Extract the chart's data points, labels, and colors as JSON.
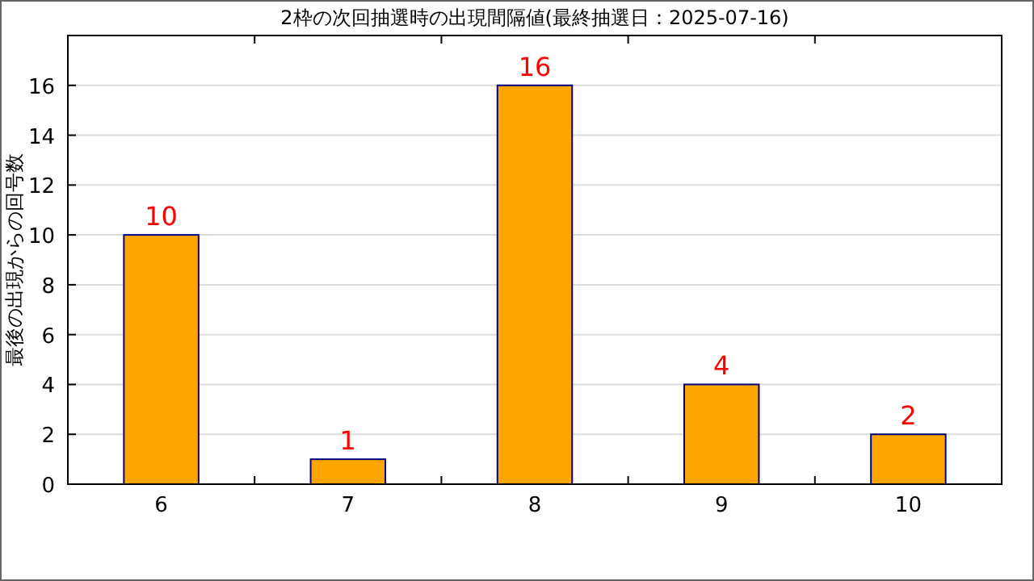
{
  "chart_data": {
    "type": "bar",
    "title": "2枠の次回抽選時の出現間隔値(最終抽選日：2025-07-16)",
    "ylabel": "最後の出現からの回号数",
    "categories": [
      "6",
      "7",
      "8",
      "9",
      "10"
    ],
    "series": [
      {
        "color": "#ffa500",
        "values": [
          10,
          1,
          16,
          4,
          2
        ]
      }
    ],
    "ylim": [
      0,
      18
    ],
    "yticks": [
      0,
      2,
      4,
      6,
      8,
      10,
      12,
      14,
      16
    ],
    "grid": "y",
    "data_labels": true
  }
}
